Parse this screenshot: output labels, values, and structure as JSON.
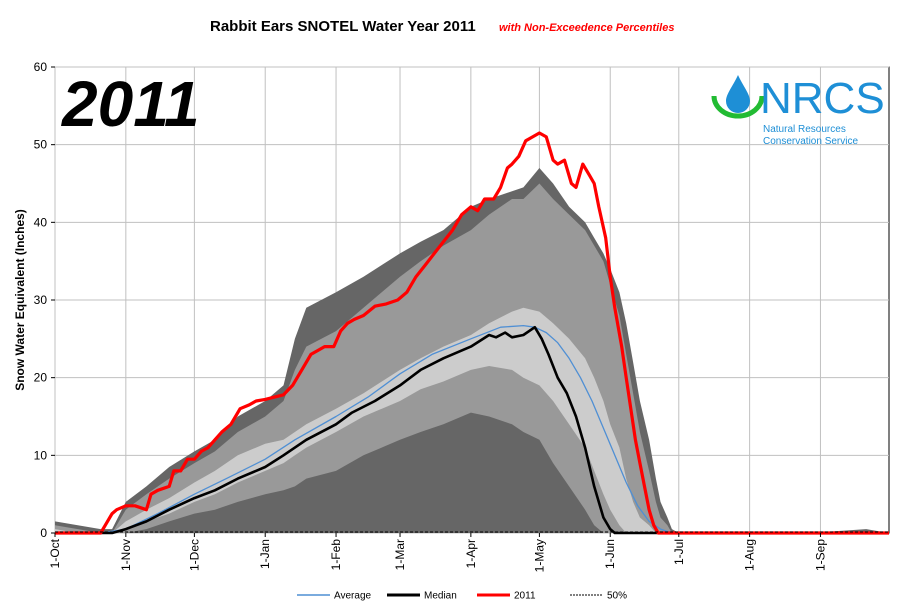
{
  "chart_data": {
    "type": "area",
    "title": "Rabbit Ears SNOTEL Water Year 2011",
    "subtitle": "with Non-Exceedence Percentiles",
    "ylabel": "Snow Water Equivalent (Inches)",
    "xlabel": "",
    "ylim": [
      0,
      60
    ],
    "y_ticks": [
      "0",
      "10",
      "20",
      "30",
      "40",
      "50",
      "60"
    ],
    "x_ticks": [
      "1-Oct",
      "1-Nov",
      "1-Dec",
      "1-Jan",
      "1-Feb",
      "1-Mar",
      "1-Apr",
      "1-May",
      "1-Jun",
      "1-Jul",
      "1-Aug",
      "1-Sep"
    ],
    "x_tick_days": [
      0,
      31,
      61,
      92,
      123,
      151,
      182,
      212,
      243,
      273,
      304,
      335
    ],
    "x_range_days": [
      0,
      365
    ],
    "grid": true,
    "watermark_year": "2011",
    "bands": {
      "day": [
        0,
        10,
        20,
        25,
        31,
        40,
        50,
        61,
        70,
        80,
        92,
        100,
        105,
        110,
        123,
        135,
        151,
        160,
        170,
        182,
        190,
        200,
        205,
        212,
        218,
        225,
        232,
        236,
        240,
        243,
        247,
        250,
        253,
        256,
        260,
        263,
        265,
        268,
        270,
        273,
        300,
        330,
        355,
        365
      ],
      "p10": [
        0,
        0,
        0,
        0,
        0,
        0.5,
        1.5,
        2.5,
        3,
        4,
        5,
        5.5,
        6,
        7,
        8,
        10,
        12,
        13,
        14,
        15.5,
        15,
        14,
        13,
        12,
        9,
        6,
        3,
        1,
        0,
        0,
        0,
        0,
        0,
        0,
        0,
        0,
        0,
        0,
        0,
        0,
        0,
        0,
        0,
        0
      ],
      "p30": [
        0,
        0,
        0,
        0,
        0.5,
        1.5,
        2.5,
        4,
        5,
        6.5,
        8,
        9,
        10,
        11,
        13,
        15,
        17,
        18.5,
        19.5,
        21,
        21.5,
        21,
        20,
        19,
        17,
        14,
        11,
        8,
        5,
        3,
        1,
        0,
        0,
        0,
        0,
        0,
        0,
        0,
        0,
        0,
        0,
        0,
        0,
        0
      ],
      "p70": [
        0.5,
        0,
        0,
        0,
        1.5,
        3,
        4.5,
        6.5,
        8,
        10,
        11.5,
        12,
        13,
        14,
        16,
        18,
        21,
        22.5,
        24,
        25.5,
        27,
        28.5,
        29,
        28.5,
        27,
        25,
        22.5,
        20,
        17,
        14,
        11,
        7,
        4,
        2,
        1,
        0,
        0,
        0,
        0,
        0,
        0,
        0,
        0,
        0
      ],
      "p90": [
        1,
        0.5,
        0,
        0,
        3,
        5,
        7,
        9,
        10.5,
        13,
        15,
        17,
        21,
        24,
        26,
        29,
        33,
        35,
        37,
        39,
        41,
        43,
        43,
        45,
        43,
        41,
        39,
        37,
        35,
        32,
        28,
        23,
        18,
        13,
        8,
        4,
        2,
        1,
        0,
        0,
        0,
        0,
        0,
        0
      ],
      "pmax": [
        1.5,
        1,
        0.5,
        0.5,
        4,
        6,
        8.5,
        10.5,
        12,
        15,
        17,
        19,
        25,
        29,
        31,
        33,
        36,
        37.5,
        39,
        42,
        43,
        44,
        44.5,
        47,
        45,
        42,
        40,
        38,
        36,
        34,
        31,
        27,
        22,
        17,
        12,
        7,
        4,
        2,
        0.5,
        0,
        0,
        0,
        0.5,
        0
      ]
    },
    "series": [
      {
        "name": "Average",
        "color": "#4f8fd4",
        "day": [
          0,
          20,
          31,
          45,
          61,
          75,
          92,
          105,
          123,
          137,
          151,
          165,
          182,
          195,
          205,
          210,
          215,
          220,
          225,
          230,
          235,
          240,
          245,
          250,
          255,
          260,
          265,
          270,
          273,
          365
        ],
        "values": [
          0,
          0,
          0.5,
          2.5,
          5,
          7,
          9.5,
          12,
          15,
          17.5,
          20.5,
          23,
          25,
          26.5,
          26.7,
          26.5,
          25.8,
          24.5,
          22.5,
          20,
          17,
          13.5,
          10,
          6.5,
          3.5,
          1.5,
          0.5,
          0,
          0,
          0
        ]
      },
      {
        "name": "Median",
        "color": "#000000",
        "day": [
          0,
          25,
          31,
          40,
          50,
          61,
          70,
          80,
          92,
          100,
          110,
          123,
          130,
          140,
          151,
          160,
          170,
          182,
          190,
          193,
          197,
          200,
          205,
          210,
          213,
          216,
          220,
          224,
          228,
          232,
          236,
          240,
          243,
          245,
          250,
          365
        ],
        "values": [
          0,
          0,
          0.5,
          1.5,
          3,
          4.5,
          5.5,
          7,
          8.5,
          10,
          12,
          14,
          15.5,
          17,
          19,
          21,
          22.5,
          24,
          25.5,
          25.2,
          25.8,
          25.2,
          25.5,
          26.5,
          25,
          23,
          20,
          18,
          15,
          11,
          6,
          2,
          0.5,
          0,
          0,
          0
        ]
      },
      {
        "name": "2011",
        "color": "#ff0000",
        "day": [
          0,
          20,
          22,
          25,
          27,
          31,
          35,
          40,
          42,
          45,
          50,
          52,
          55,
          58,
          61,
          64,
          67,
          70,
          73,
          77,
          81,
          85,
          88,
          92,
          96,
          100,
          104,
          108,
          112,
          115,
          118,
          122,
          125,
          128,
          131,
          135,
          140,
          145,
          150,
          154,
          158,
          162,
          166,
          170,
          174,
          178,
          182,
          185,
          188,
          192,
          195,
          198,
          200,
          203,
          206,
          209,
          212,
          215,
          218,
          220,
          223,
          226,
          228,
          231,
          234,
          236,
          238,
          241,
          243,
          245,
          248,
          250,
          252,
          254,
          256,
          258,
          260,
          262,
          264,
          266,
          268,
          270,
          272,
          273,
          280,
          300,
          330,
          365
        ],
        "values": [
          0,
          0,
          1,
          2.5,
          3,
          3.5,
          3.5,
          3,
          5,
          5.5,
          6,
          8,
          8,
          9.5,
          9.5,
          10.5,
          11,
          12,
          13,
          14,
          16,
          16.5,
          17,
          17.2,
          17.5,
          17.8,
          19,
          21,
          23,
          23.5,
          24,
          24,
          26,
          27,
          27.5,
          28,
          29.2,
          29.5,
          30,
          31,
          33,
          34.5,
          36,
          37.5,
          39,
          41,
          42,
          41.5,
          43,
          43,
          44.5,
          47,
          47.5,
          48.5,
          50.5,
          51,
          51.5,
          51,
          48,
          47.5,
          48,
          45,
          44.5,
          47.5,
          46,
          45,
          42,
          38,
          33,
          29,
          24,
          20,
          16,
          12,
          9,
          6,
          3,
          1,
          0,
          0,
          0,
          0,
          0,
          0,
          0,
          0,
          0,
          0
        ]
      }
    ],
    "legend": {
      "placement": "bottom",
      "items": [
        {
          "label": "Average",
          "color": "#4f8fd4",
          "style": "solid-thin"
        },
        {
          "label": "Median",
          "color": "#000000",
          "style": "solid-thick"
        },
        {
          "label": "2011",
          "color": "#ff0000",
          "style": "solid-thick"
        },
        {
          "label": "50%",
          "color": "#000000",
          "style": "dashed"
        }
      ]
    },
    "band_colors": {
      "outer": "#666666",
      "mid": "#999999",
      "inner": "#cccccc"
    },
    "logo": {
      "name": "NRCS",
      "line1": "Natural Resources",
      "line2": "Conservation Service",
      "color": "#1e8fd6",
      "accent": "#22bb33",
      "icon": "water-drop-icon"
    }
  }
}
